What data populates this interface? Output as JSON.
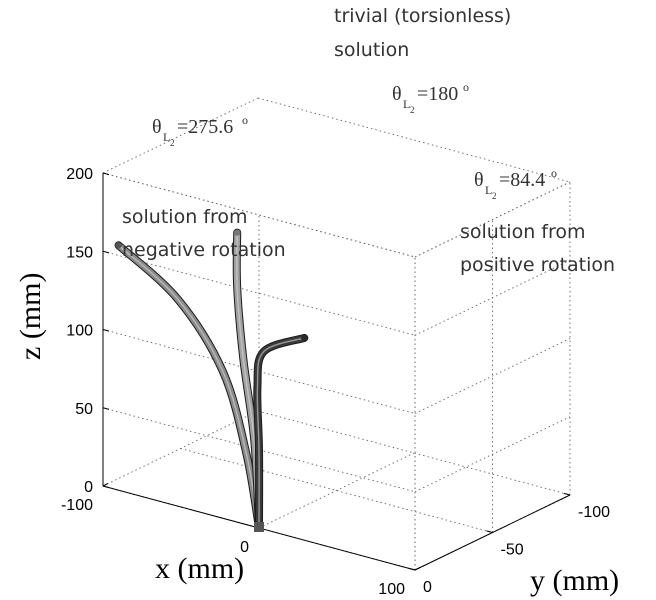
{
  "chart_data": {
    "type": "line",
    "projection": "3d",
    "title": "",
    "axes": {
      "x": {
        "label": "x (mm)",
        "range": [
          -100,
          100
        ],
        "ticks": [
          "-100",
          "0",
          "100"
        ],
        "tick_values": [
          -100,
          0,
          100
        ]
      },
      "y": {
        "label": "y (mm)",
        "range": [
          -100,
          0
        ],
        "ticks": [
          "-100",
          "-50",
          "0"
        ],
        "tick_values": [
          -100,
          -50,
          0
        ]
      },
      "z": {
        "label": "z (mm)",
        "range": [
          0,
          200
        ],
        "ticks": [
          "0",
          "50",
          "100",
          "150",
          "200"
        ],
        "tick_values": [
          0,
          50,
          100,
          150,
          200
        ]
      }
    },
    "grid": true,
    "grid_style": "dotted",
    "box": true,
    "series": [
      {
        "name": "",
        "theta": "275.6",
        "color": "#8a8a8a",
        "tip_color": "#555555",
        "points": [
          [
            0,
            0,
            0
          ],
          [
            -8,
            0,
            45
          ],
          [
            -25,
            -2,
            92
          ],
          [
            -55,
            -3,
            130
          ],
          [
            -92,
            -2,
            155
          ]
        ]
      },
      {
        "name": "",
        "theta": "180",
        "color": "#a0a0a0",
        "tip_color": "#777777",
        "points": [
          [
            0,
            0,
            0
          ],
          [
            -3,
            0,
            55
          ],
          [
            -10,
            0,
            105
          ],
          [
            -14,
            0,
            150
          ],
          [
            -14,
            0,
            185
          ]
        ]
      },
      {
        "name": "",
        "theta": "84.4",
        "color": "#3a3a3a",
        "tip_color": "#2a2a2a",
        "points": [
          [
            0,
            0,
            0
          ],
          [
            0,
            0,
            50
          ],
          [
            0,
            1,
            90
          ],
          [
            5,
            2,
            115
          ],
          [
            30,
            1,
            130
          ]
        ]
      }
    ],
    "annotations": [
      {
        "id": "trivial",
        "lines": [
          "trivial (torsionless)",
          "solution"
        ]
      },
      {
        "id": "negative",
        "lines": [
          "solution from",
          "negative rotation"
        ]
      },
      {
        "id": "positive",
        "lines": [
          "solution from",
          "positive rotation"
        ]
      },
      {
        "id": "theta_neg",
        "symbol": "θ",
        "sub": "L",
        "subsub": "2",
        "value": "=275.6",
        "unit": "o"
      },
      {
        "id": "theta_triv",
        "symbol": "θ",
        "sub": "L",
        "subsub": "2",
        "value": "=180",
        "unit": "o"
      },
      {
        "id": "theta_pos",
        "symbol": "θ",
        "sub": "L",
        "subsub": "2",
        "value": "=84.4",
        "unit": "o"
      }
    ]
  }
}
